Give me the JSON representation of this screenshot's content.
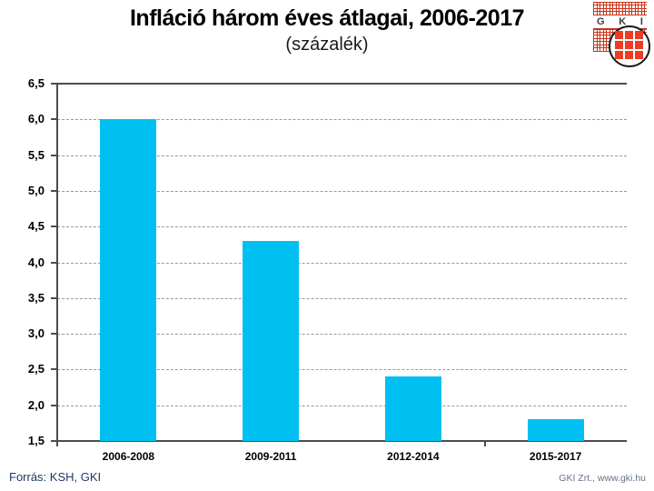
{
  "header": {
    "title": "Infláció három éves átlagai, 2006-2017",
    "subtitle": "(százalék)"
  },
  "logo": {
    "letters": {
      "g": "G",
      "k": "K",
      "i": "I"
    }
  },
  "chart_data": {
    "type": "bar",
    "title": "Infláció három éves átlagai, 2006-2017",
    "subtitle": "(százalék)",
    "categories": [
      "2006-2008",
      "2009-2011",
      "2012-2014",
      "2015-2017"
    ],
    "values": [
      6.0,
      4.3,
      2.4,
      1.8
    ],
    "xlabel": "",
    "ylabel": "",
    "ylim": [
      1.5,
      6.5
    ],
    "ytick_step": 0.5,
    "yticks": [
      {
        "value": 6.5,
        "label": "6,5"
      },
      {
        "value": 6.0,
        "label": "6,0"
      },
      {
        "value": 5.5,
        "label": "5,5"
      },
      {
        "value": 5.0,
        "label": "5,0"
      },
      {
        "value": 4.5,
        "label": "4,5"
      },
      {
        "value": 4.0,
        "label": "4,0"
      },
      {
        "value": 3.5,
        "label": "3,5"
      },
      {
        "value": 3.0,
        "label": "3,0"
      },
      {
        "value": 2.5,
        "label": "2,5"
      },
      {
        "value": 2.0,
        "label": "2,0"
      },
      {
        "value": 1.5,
        "label": "1,5"
      }
    ],
    "grid": true,
    "legend": false,
    "bar_color": "#00C0F2"
  },
  "colors": {
    "bar": "#00C0F2",
    "axis": "#4D4D4D",
    "grid": "#999999",
    "source_text": "#1F3864",
    "credit_text": "#64748B",
    "logo_red": "#C8351B",
    "logo_square_red": "#EE3B22",
    "logo_letters": "#3D3D3D"
  },
  "footer": {
    "source": "Forrás: KSH, GKI",
    "credit": "GKI Zrt., www.gki.hu"
  }
}
